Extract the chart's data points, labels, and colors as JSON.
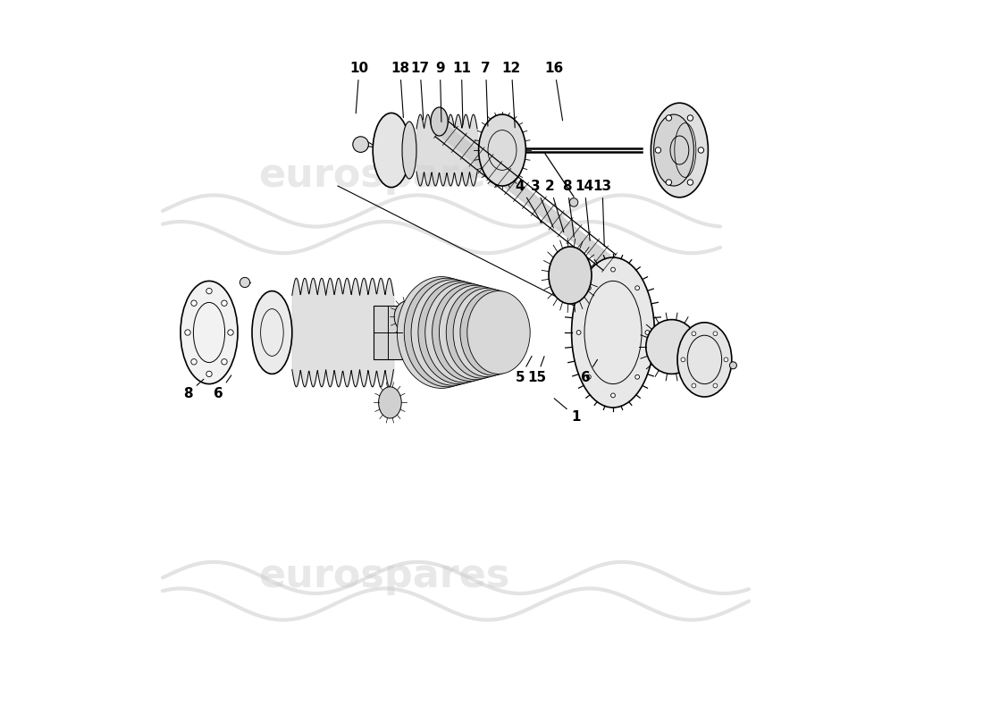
{
  "background_color": "#ffffff",
  "watermark_text": "eurospares",
  "watermark_color": "#cccccc",
  "watermark_fontsize": 32,
  "part_label_color": "#000000",
  "line_color": "#000000",
  "font_size": 11,
  "upper_labels": {
    "10": [
      0.315,
      0.895,
      0.31,
      0.838
    ],
    "18": [
      0.372,
      0.895,
      0.377,
      0.832
    ],
    "17": [
      0.4,
      0.895,
      0.405,
      0.829
    ],
    "9": [
      0.428,
      0.895,
      0.43,
      0.826
    ],
    "11": [
      0.458,
      0.895,
      0.46,
      0.822
    ],
    "7": [
      0.492,
      0.895,
      0.495,
      0.82
    ],
    "12": [
      0.528,
      0.895,
      0.533,
      0.818
    ],
    "16": [
      0.588,
      0.895,
      0.6,
      0.828
    ]
  },
  "lower_labels": {
    "8": [
      0.075,
      0.44,
      0.1,
      0.472
    ],
    "6": [
      0.118,
      0.44,
      0.138,
      0.478
    ],
    "1": [
      0.618,
      0.408,
      0.585,
      0.445
    ],
    "5": [
      0.54,
      0.462,
      0.558,
      0.505
    ],
    "15": [
      0.563,
      0.462,
      0.575,
      0.505
    ],
    "6b": [
      0.632,
      0.462,
      0.65,
      0.5
    ],
    "4": [
      0.54,
      0.73,
      0.572,
      0.685
    ],
    "3": [
      0.562,
      0.73,
      0.588,
      0.678
    ],
    "2": [
      0.582,
      0.73,
      0.602,
      0.672
    ],
    "8b": [
      0.606,
      0.73,
      0.616,
      0.665
    ],
    "14": [
      0.63,
      0.73,
      0.638,
      0.66
    ],
    "13": [
      0.655,
      0.73,
      0.658,
      0.652
    ]
  },
  "lower_display": {
    "8": "8",
    "6": "6",
    "1": "1",
    "5": "5",
    "15": "15",
    "6b": "6",
    "4": "4",
    "3": "3",
    "2": "2",
    "8b": "8",
    "14": "14",
    "13": "13"
  }
}
